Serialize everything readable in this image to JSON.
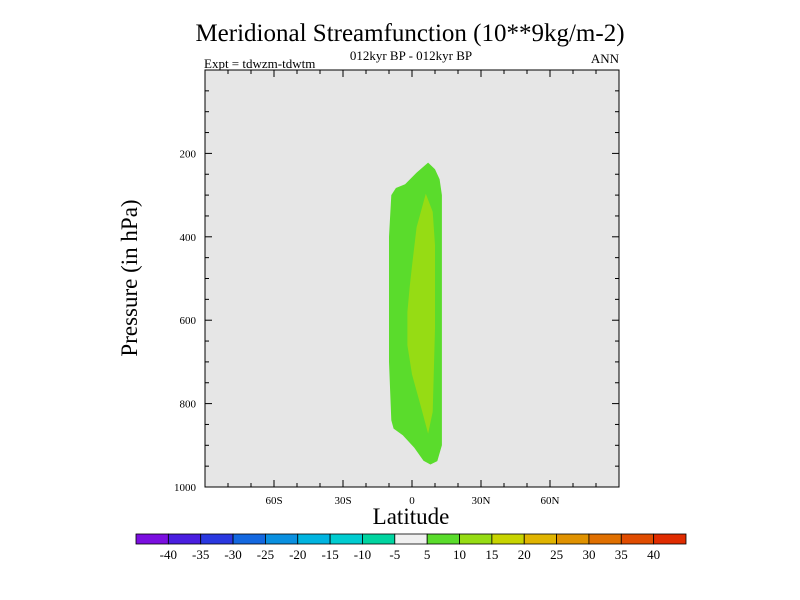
{
  "chart_data": {
    "type": "contour",
    "title": "Meridional Streamfunction (10**9kg/m-2)",
    "subtitle": "012kyr BP - 012kyr BP",
    "left_label": "Expt = tdwzm-tdwtm",
    "right_label": "ANN",
    "xlabel": "Latitude",
    "ylabel": "Pressure (in hPa)",
    "xlim": [
      -90,
      90
    ],
    "ylim": [
      1000,
      0
    ],
    "x_ticks": [
      {
        "value": -60,
        "label": "60S"
      },
      {
        "value": -30,
        "label": "30S"
      },
      {
        "value": 0,
        "label": "0"
      },
      {
        "value": 30,
        "label": "30N"
      },
      {
        "value": 60,
        "label": "60N"
      }
    ],
    "y_ticks": [
      {
        "value": 200,
        "label": "200"
      },
      {
        "value": 400,
        "label": "400"
      },
      {
        "value": 600,
        "label": "600"
      },
      {
        "value": 800,
        "label": "800"
      },
      {
        "value": 1000,
        "label": "1000"
      }
    ],
    "background_color": "#e6e6e6",
    "levels": [
      -40,
      -35,
      -30,
      -25,
      -20,
      -15,
      -10,
      -5,
      5,
      10,
      15,
      20,
      25,
      30,
      35,
      40
    ],
    "level_labels": [
      "-40",
      "-35",
      "-30",
      "-25",
      "-20",
      "-15",
      "-10",
      "-5",
      "5",
      "10",
      "15",
      "20",
      "25",
      "30",
      "35",
      "40"
    ],
    "colors": [
      "#7b0fe0",
      "#4a1ee0",
      "#2a38e0",
      "#1468e0",
      "#0a90e0",
      "#00b4e0",
      "#00ccd0",
      "#00d4a0",
      "#f0f0f0",
      "#5adc2c",
      "#96dc14",
      "#c8d400",
      "#e0b400",
      "#e09200",
      "#e07000",
      "#e04c00",
      "#e02c00"
    ],
    "regions": [
      {
        "name": "5 to 10",
        "color": "#5adc2c",
        "outline": [
          [
            -7,
            283
          ],
          [
            -3,
            274
          ],
          [
            2,
            246
          ],
          [
            7,
            222
          ],
          [
            10,
            238
          ],
          [
            12,
            262
          ],
          [
            13,
            300
          ],
          [
            13,
            900
          ],
          [
            11,
            938
          ],
          [
            8,
            946
          ],
          [
            5,
            937
          ],
          [
            1,
            906
          ],
          [
            -4,
            876
          ],
          [
            -8,
            860
          ],
          [
            -9,
            840
          ],
          [
            -10,
            700
          ],
          [
            -10,
            400
          ],
          [
            -9,
            300
          ]
        ]
      },
      {
        "name": "10 to 15",
        "color": "#96dc14",
        "outline": [
          [
            2,
            377
          ],
          [
            6,
            297
          ],
          [
            9,
            340
          ],
          [
            10,
            420
          ],
          [
            10,
            620
          ],
          [
            9,
            820
          ],
          [
            7,
            872
          ],
          [
            4,
            810
          ],
          [
            0,
            730
          ],
          [
            -2,
            660
          ],
          [
            -2,
            620
          ],
          [
            -2,
            580
          ],
          [
            -1,
            520
          ],
          [
            0,
            470
          ]
        ]
      }
    ]
  }
}
